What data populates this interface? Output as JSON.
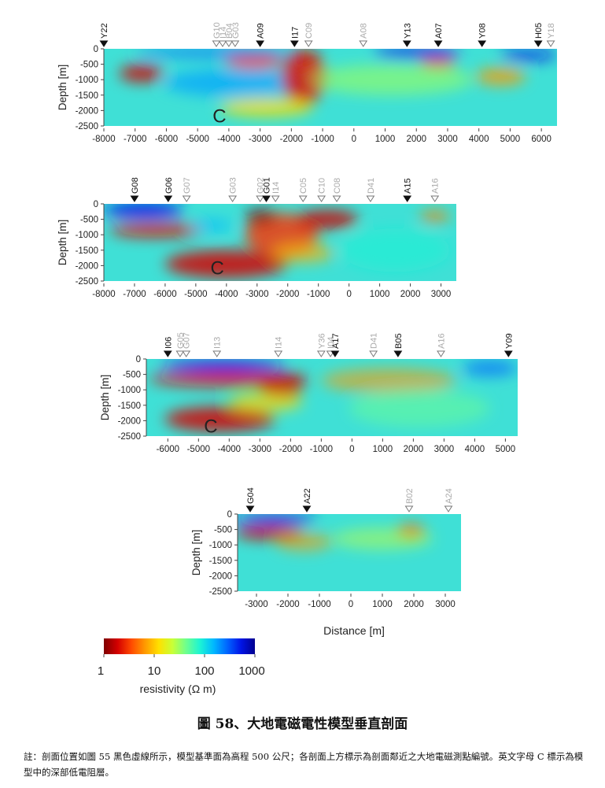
{
  "figure": {
    "caption": "圖 58、大地電磁電性模型垂直剖面",
    "note": "註：剖面位置如圖 55 黑色虛線所示，模型基準面為高程 500 公尺；各剖面上方標示為剖面鄰近之大地電磁測點編號。英文字母 C 標示為模型中的深部低電阻層。",
    "distance_label": "Distance [m]",
    "colorbar": {
      "label": "resistivity (Ω m)",
      "ticks": [
        "1",
        "10",
        "100",
        "1000"
      ],
      "colors": [
        "#7f0000",
        "#d40000",
        "#ff4a00",
        "#ff9a00",
        "#ffe000",
        "#c8ff37",
        "#6dff8f",
        "#1cf4d4",
        "#00b8ff",
        "#0064ff",
        "#0014e6",
        "#00008f"
      ]
    }
  },
  "chart_data": [
    {
      "type": "heatmap",
      "ylabel": "Depth [m]",
      "xlim": [
        -8000,
        6500
      ],
      "ylim": [
        0,
        -2500
      ],
      "x_ticks": [
        -8000,
        -7000,
        -6000,
        -5000,
        -4000,
        -3000,
        -2000,
        -1000,
        0,
        1000,
        2000,
        3000,
        4000,
        5000,
        6000
      ],
      "y_ticks": [
        0,
        -500,
        -1000,
        -1500,
        -2000,
        -2500
      ],
      "annotation": "C",
      "annotation_pos": {
        "x": -4300,
        "y": -2150
      },
      "stations": [
        {
          "name": "Y22",
          "x": -8000,
          "dark": true
        },
        {
          "name": "G10",
          "x": -4400,
          "dark": false
        },
        {
          "name": "I14",
          "x": -4200,
          "dark": false
        },
        {
          "name": "B04",
          "x": -4000,
          "dark": false
        },
        {
          "name": "G03",
          "x": -3800,
          "dark": false
        },
        {
          "name": "A09",
          "x": -3000,
          "dark": true
        },
        {
          "name": "I17",
          "x": -1900,
          "dark": true
        },
        {
          "name": "C09",
          "x": -1450,
          "dark": false
        },
        {
          "name": "A08",
          "x": 300,
          "dark": false
        },
        {
          "name": "Y13",
          "x": 1700,
          "dark": true
        },
        {
          "name": "A07",
          "x": 2700,
          "dark": true
        },
        {
          "name": "Y08",
          "x": 4100,
          "dark": true
        },
        {
          "name": "H05",
          "x": 5900,
          "dark": true
        },
        {
          "name": "Y18",
          "x": 6300,
          "dark": false
        }
      ],
      "blobs": [
        {
          "x": -3700,
          "y": -1100,
          "rx": 2400,
          "ry": 450,
          "color": "#00a0ff",
          "opacity": 0.7
        },
        {
          "x": -6800,
          "y": -800,
          "rx": 700,
          "ry": 280,
          "color": "#d40000",
          "opacity": 0.85
        },
        {
          "x": -3200,
          "y": -400,
          "rx": 900,
          "ry": 250,
          "color": "#ff4a00",
          "opacity": 0.85
        },
        {
          "x": -1600,
          "y": -900,
          "rx": 700,
          "ry": 900,
          "color": "#e01000",
          "opacity": 0.85
        },
        {
          "x": -2800,
          "y": -1900,
          "rx": 1500,
          "ry": 300,
          "color": "#ffdd00",
          "opacity": 0.8
        },
        {
          "x": 1200,
          "y": -1000,
          "rx": 2600,
          "ry": 500,
          "color": "#9dff5c",
          "opacity": 0.6
        },
        {
          "x": 4700,
          "y": -900,
          "rx": 800,
          "ry": 280,
          "color": "#ff9a00",
          "opacity": 0.8
        },
        {
          "x": 2700,
          "y": -450,
          "rx": 600,
          "ry": 160,
          "color": "#ff3000",
          "opacity": 0.85
        },
        {
          "x": 2000,
          "y": -150,
          "rx": 1400,
          "ry": 180,
          "color": "#0014e6",
          "opacity": 0.9
        },
        {
          "x": -4500,
          "y": -120,
          "rx": 2500,
          "ry": 150,
          "color": "#0064ff",
          "opacity": 0.75
        },
        {
          "x": 5600,
          "y": -200,
          "rx": 900,
          "ry": 200,
          "color": "#0014e6",
          "opacity": 0.7
        }
      ]
    },
    {
      "type": "heatmap",
      "ylabel": "Depth [m]",
      "xlim": [
        -8000,
        3500
      ],
      "ylim": [
        0,
        -2500
      ],
      "x_ticks": [
        -8000,
        -7000,
        -6000,
        -5000,
        -4000,
        -3000,
        -2000,
        -1000,
        0,
        1000,
        2000,
        3000
      ],
      "y_ticks": [
        0,
        -500,
        -1000,
        -1500,
        -2000,
        -2500
      ],
      "annotation": "C",
      "annotation_pos": {
        "x": -4300,
        "y": -2050
      },
      "stations": [
        {
          "name": "G08",
          "x": -7000,
          "dark": true
        },
        {
          "name": "G06",
          "x": -5900,
          "dark": true
        },
        {
          "name": "G07",
          "x": -5300,
          "dark": false
        },
        {
          "name": "G03",
          "x": -3800,
          "dark": false
        },
        {
          "name": "G02",
          "x": -2900,
          "dark": false
        },
        {
          "name": "G01",
          "x": -2700,
          "dark": true
        },
        {
          "name": "I14",
          "x": -2400,
          "dark": false
        },
        {
          "name": "C05",
          "x": -1500,
          "dark": false
        },
        {
          "name": "C10",
          "x": -900,
          "dark": false
        },
        {
          "name": "C08",
          "x": -400,
          "dark": false
        },
        {
          "name": "D41",
          "x": 700,
          "dark": false
        },
        {
          "name": "A15",
          "x": 1900,
          "dark": true
        },
        {
          "name": "A16",
          "x": 2800,
          "dark": false
        }
      ],
      "blobs": [
        {
          "x": -6700,
          "y": -200,
          "rx": 1300,
          "ry": 250,
          "color": "#0014e6",
          "opacity": 0.9
        },
        {
          "x": -6300,
          "y": -850,
          "rx": 1500,
          "ry": 230,
          "color": "#e01000",
          "opacity": 0.85
        },
        {
          "x": -4000,
          "y": -1950,
          "rx": 2000,
          "ry": 450,
          "color": "#d40000",
          "opacity": 0.85
        },
        {
          "x": -2200,
          "y": -1000,
          "rx": 1200,
          "ry": 700,
          "color": "#ff3000",
          "opacity": 0.8
        },
        {
          "x": -700,
          "y": -500,
          "rx": 1000,
          "ry": 300,
          "color": "#cc0000",
          "opacity": 0.85
        },
        {
          "x": -2900,
          "y": -400,
          "rx": 500,
          "ry": 250,
          "color": "#7f0000",
          "opacity": 0.7
        },
        {
          "x": -4500,
          "y": -700,
          "rx": 700,
          "ry": 200,
          "color": "#00b8ff",
          "opacity": 0.7
        },
        {
          "x": 1500,
          "y": -1500,
          "rx": 1800,
          "ry": 700,
          "color": "#1cf4d4",
          "opacity": 0.5
        },
        {
          "x": 2800,
          "y": -400,
          "rx": 500,
          "ry": 180,
          "color": "#ff8000",
          "opacity": 0.8
        },
        {
          "x": -1500,
          "y": -1600,
          "rx": 1000,
          "ry": 300,
          "color": "#ffb000",
          "opacity": 0.7
        }
      ]
    },
    {
      "type": "heatmap",
      "ylabel": "Depth [m]",
      "xlim": [
        -6700,
        5400
      ],
      "ylim": [
        0,
        -2500
      ],
      "x_ticks": [
        -6000,
        -5000,
        -4000,
        -3000,
        -2000,
        -1000,
        0,
        1000,
        2000,
        3000,
        4000,
        5000
      ],
      "y_ticks": [
        0,
        -500,
        -1000,
        -1500,
        -2000,
        -2500
      ],
      "annotation": "C",
      "annotation_pos": {
        "x": -4600,
        "y": -2150
      },
      "stations": [
        {
          "name": "I06",
          "x": -6000,
          "dark": true
        },
        {
          "name": "G05",
          "x": -5600,
          "dark": false
        },
        {
          "name": "G07",
          "x": -5400,
          "dark": false
        },
        {
          "name": "I13",
          "x": -4400,
          "dark": false
        },
        {
          "name": "I14",
          "x": -2400,
          "dark": false
        },
        {
          "name": "Y36",
          "x": -1000,
          "dark": false
        },
        {
          "name": "I04",
          "x": -700,
          "dark": false
        },
        {
          "name": "A17",
          "x": -550,
          "dark": true
        },
        {
          "name": "D41",
          "x": 700,
          "dark": false
        },
        {
          "name": "B05",
          "x": 1500,
          "dark": true
        },
        {
          "name": "A16",
          "x": 2900,
          "dark": false
        },
        {
          "name": "Y09",
          "x": 5100,
          "dark": true
        }
      ],
      "blobs": [
        {
          "x": -4200,
          "y": -200,
          "rx": 2000,
          "ry": 200,
          "color": "#0014e6",
          "opacity": 0.85
        },
        {
          "x": -4000,
          "y": -650,
          "rx": 2600,
          "ry": 250,
          "color": "#e01000",
          "opacity": 0.85
        },
        {
          "x": -4300,
          "y": -1950,
          "rx": 1800,
          "ry": 400,
          "color": "#d40000",
          "opacity": 0.85
        },
        {
          "x": -2300,
          "y": -900,
          "rx": 700,
          "ry": 400,
          "color": "#cc0000",
          "opacity": 0.8
        },
        {
          "x": 1200,
          "y": -700,
          "rx": 2200,
          "ry": 400,
          "color": "#ff9a00",
          "opacity": 0.6
        },
        {
          "x": 2200,
          "y": -1600,
          "rx": 2300,
          "ry": 600,
          "color": "#6dff8f",
          "opacity": 0.5
        },
        {
          "x": 4500,
          "y": -300,
          "rx": 900,
          "ry": 250,
          "color": "#0064ff",
          "opacity": 0.7
        },
        {
          "x": -2800,
          "y": -1400,
          "rx": 1200,
          "ry": 300,
          "color": "#ffdd00",
          "opacity": 0.7
        }
      ]
    },
    {
      "type": "heatmap",
      "ylabel": "Depth [m]",
      "xlim": [
        -3600,
        3500
      ],
      "ylim": [
        0,
        -2500
      ],
      "x_ticks": [
        -3000,
        -2000,
        -1000,
        0,
        1000,
        2000,
        3000
      ],
      "y_ticks": [
        0,
        -500,
        -1000,
        -1500,
        -2000,
        -2500
      ],
      "stations": [
        {
          "name": "G04",
          "x": -3200,
          "dark": true
        },
        {
          "name": "A22",
          "x": -1400,
          "dark": true
        },
        {
          "name": "B02",
          "x": 1850,
          "dark": false
        },
        {
          "name": "A24",
          "x": 3100,
          "dark": false
        }
      ],
      "blobs": [
        {
          "x": -2400,
          "y": -150,
          "rx": 1300,
          "ry": 150,
          "color": "#0014e6",
          "opacity": 0.9
        },
        {
          "x": -2600,
          "y": -600,
          "rx": 1100,
          "ry": 230,
          "color": "#d40000",
          "opacity": 0.85
        },
        {
          "x": -1500,
          "y": -900,
          "rx": 900,
          "ry": 300,
          "color": "#ff9a00",
          "opacity": 0.6
        },
        {
          "x": 1900,
          "y": -550,
          "rx": 450,
          "ry": 230,
          "color": "#ff4a00",
          "opacity": 0.8
        },
        {
          "x": 1000,
          "y": -800,
          "rx": 1600,
          "ry": 350,
          "color": "#c8ff37",
          "opacity": 0.5
        }
      ]
    }
  ]
}
